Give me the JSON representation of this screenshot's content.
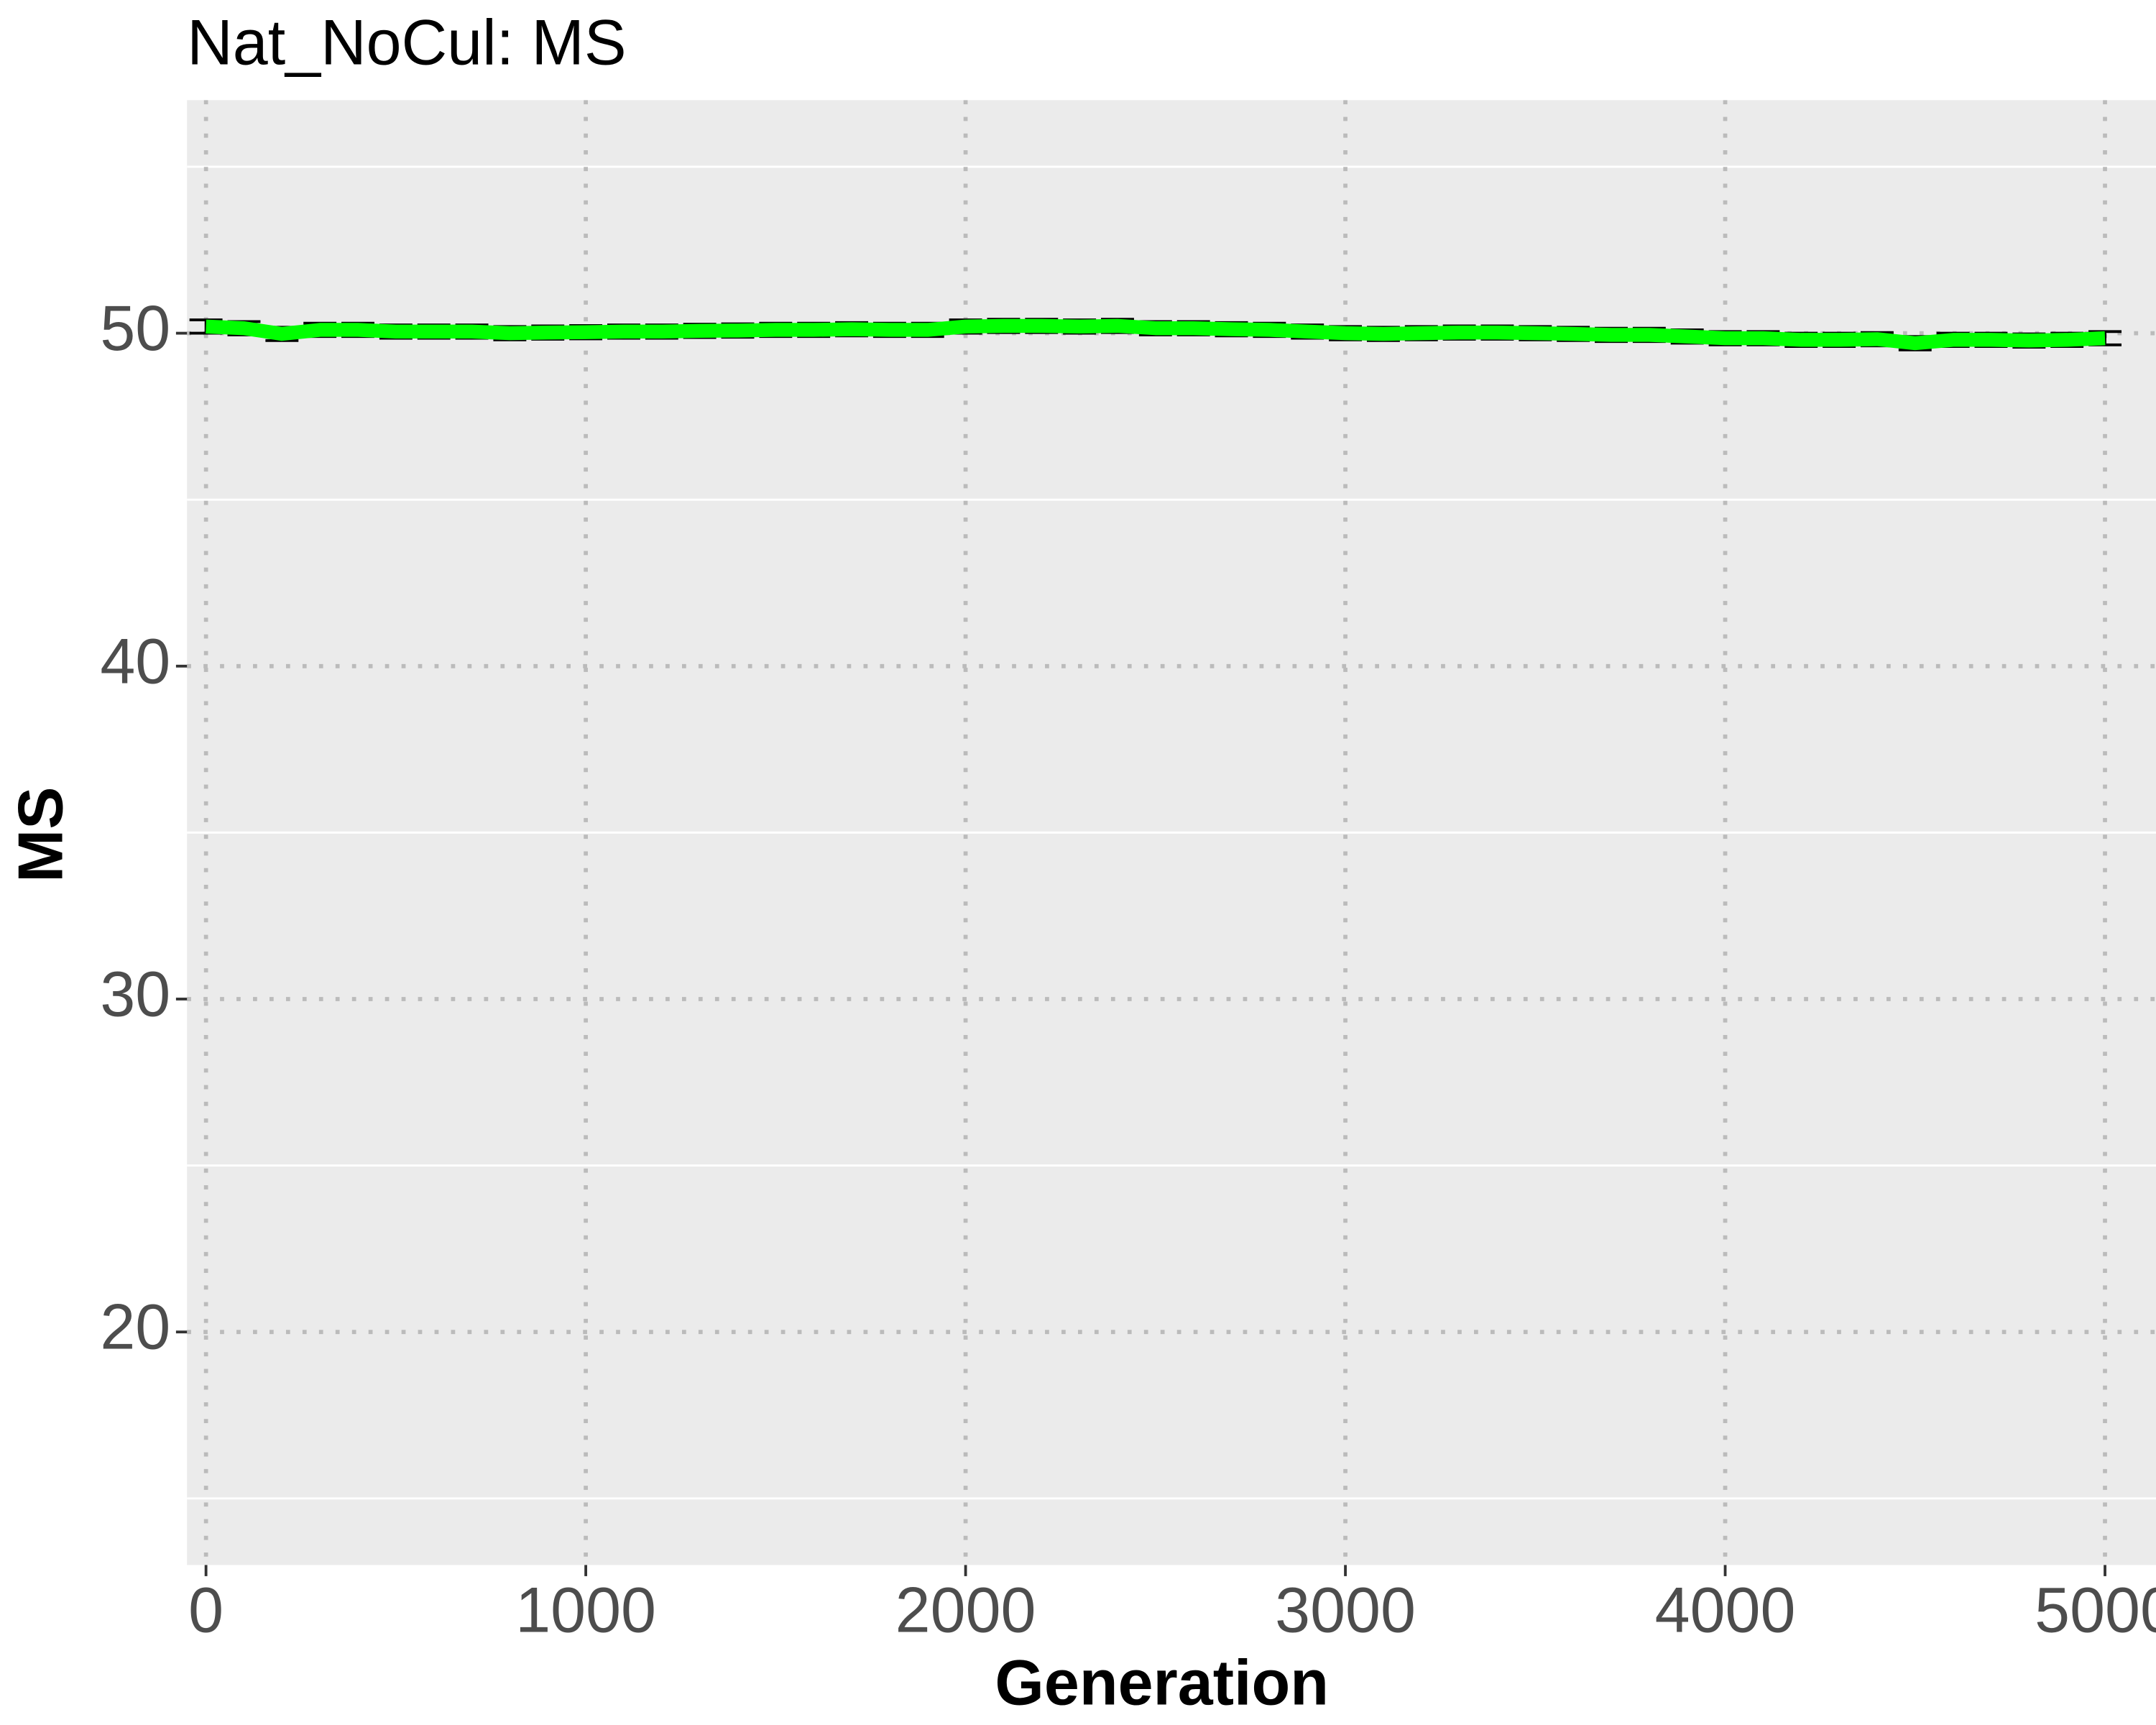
{
  "chart_data": {
    "type": "line",
    "title": "Nat_NoCul: MS",
    "x_label": "Generation",
    "y_label": "MS",
    "x": [
      0,
      100,
      200,
      300,
      400,
      500,
      600,
      700,
      800,
      900,
      1000,
      1100,
      1200,
      1300,
      1400,
      1500,
      1600,
      1700,
      1800,
      1900,
      2000,
      2100,
      2200,
      2300,
      2400,
      2500,
      2600,
      2700,
      2800,
      2900,
      3000,
      3100,
      3200,
      3300,
      3400,
      3500,
      3600,
      3700,
      3800,
      3900,
      4000,
      4100,
      4200,
      4300,
      4400,
      4500,
      4600,
      4700,
      4800,
      4900,
      5000
    ],
    "series": [
      {
        "color": "#00ff00",
        "error_color": "#000000",
        "values": [
          50.2,
          50.15,
          49.98,
          50.1,
          50.1,
          50.05,
          50.05,
          50.05,
          50.0,
          50.02,
          50.03,
          50.05,
          50.05,
          50.07,
          50.08,
          50.1,
          50.1,
          50.12,
          50.1,
          50.1,
          50.2,
          50.22,
          50.22,
          50.2,
          50.22,
          50.15,
          50.15,
          50.12,
          50.1,
          50.05,
          50.0,
          49.98,
          50.0,
          50.02,
          50.02,
          50.0,
          49.98,
          49.95,
          49.95,
          49.9,
          49.85,
          49.85,
          49.8,
          49.8,
          49.82,
          49.7,
          49.8,
          49.8,
          49.78,
          49.8,
          49.85
        ],
        "error": [
          0.2,
          0.2,
          0.2,
          0.2,
          0.2,
          0.2,
          0.2,
          0.2,
          0.2,
          0.2,
          0.2,
          0.2,
          0.2,
          0.2,
          0.2,
          0.2,
          0.2,
          0.2,
          0.2,
          0.2,
          0.2,
          0.2,
          0.2,
          0.2,
          0.2,
          0.2,
          0.2,
          0.2,
          0.2,
          0.2,
          0.2,
          0.2,
          0.2,
          0.2,
          0.2,
          0.2,
          0.2,
          0.2,
          0.2,
          0.2,
          0.2,
          0.2,
          0.2,
          0.2,
          0.2,
          0.2,
          0.2,
          0.2,
          0.2,
          0.2,
          0.2
        ]
      }
    ],
    "xlim": [
      -50,
      5080
    ],
    "xticks": [
      0,
      1000,
      2000,
      3000,
      4000,
      5000
    ],
    "ylim": [
      13,
      57
    ],
    "yticks": [
      20,
      30,
      40,
      50
    ],
    "minor_yticks": [
      15,
      25,
      35,
      45,
      55
    ],
    "grid": true
  }
}
